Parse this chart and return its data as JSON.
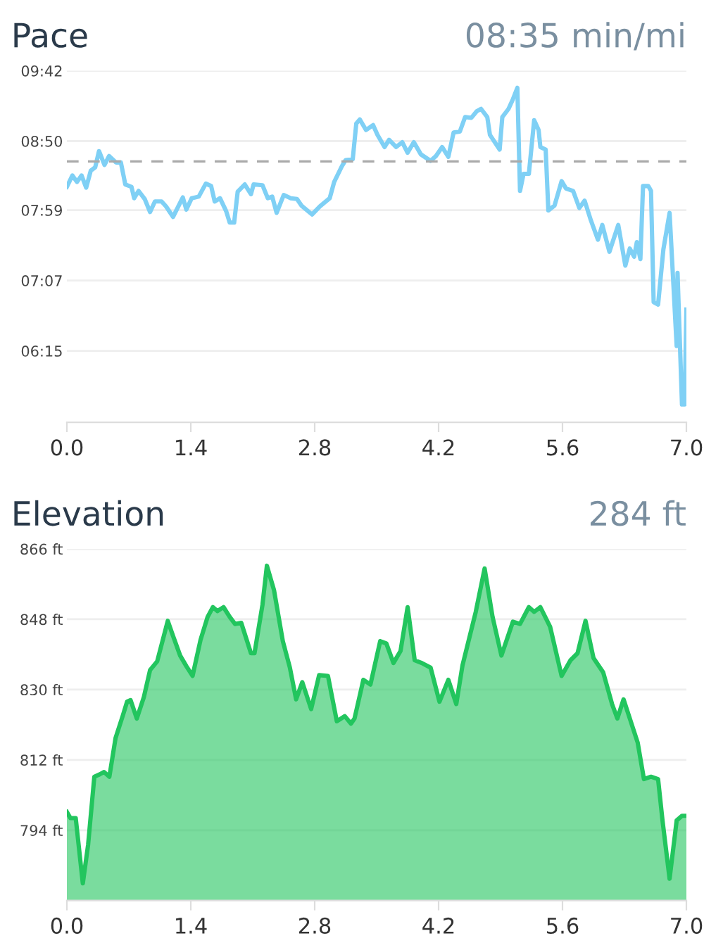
{
  "chart_data": [
    {
      "type": "line",
      "title": "Pace",
      "subtitle": "08:35 min/mi",
      "x": [
        0.0,
        0.062,
        0.114,
        0.166,
        0.218,
        0.27,
        0.32,
        0.363,
        0.425,
        0.477,
        0.555,
        0.61,
        0.66,
        0.73,
        0.76,
        0.81,
        0.88,
        0.94,
        0.995,
        1.07,
        1.12,
        1.2,
        1.31,
        1.35,
        1.41,
        1.49,
        1.57,
        1.63,
        1.67,
        1.73,
        1.8,
        1.84,
        1.89,
        1.93,
        2.01,
        2.08,
        2.11,
        2.21,
        2.27,
        2.32,
        2.37,
        2.45,
        2.53,
        2.6,
        2.65,
        2.77,
        2.86,
        2.97,
        3.02,
        3.11,
        3.15,
        3.23,
        3.27,
        3.31,
        3.38,
        3.46,
        3.51,
        3.59,
        3.64,
        3.72,
        3.79,
        3.85,
        3.92,
        4.0,
        4.11,
        4.17,
        4.24,
        4.31,
        4.37,
        4.44,
        4.5,
        4.57,
        4.63,
        4.68,
        4.75,
        4.78,
        4.89,
        4.92,
        4.99,
        5.04,
        5.09,
        5.12,
        5.16,
        5.22,
        5.28,
        5.33,
        5.35,
        5.41,
        5.44,
        5.51,
        5.59,
        5.64,
        5.72,
        5.79,
        5.85,
        5.92,
        6.0,
        6.05,
        6.13,
        6.23,
        6.31,
        6.36,
        6.41,
        6.44,
        6.48,
        6.51,
        6.57,
        6.6,
        6.63,
        6.68,
        6.74,
        6.81,
        6.89,
        6.9,
        6.95,
        6.98,
        7.0
      ],
      "series": [
        {
          "color": "#7fd0f5",
          "values": [
            8.27,
            8.41,
            8.33,
            8.41,
            8.26,
            8.47,
            8.51,
            8.71,
            8.54,
            8.65,
            8.57,
            8.57,
            8.3,
            8.27,
            8.13,
            8.22,
            8.12,
            7.96,
            8.09,
            8.09,
            8.03,
            7.9,
            8.14,
            7.99,
            8.13,
            8.15,
            8.31,
            8.28,
            8.09,
            8.13,
            7.97,
            7.83,
            7.83,
            8.21,
            8.3,
            8.18,
            8.3,
            8.29,
            8.13,
            8.15,
            7.95,
            8.17,
            8.13,
            8.12,
            8.04,
            7.93,
            8.03,
            8.13,
            8.33,
            8.53,
            8.6,
            8.61,
            9.05,
            9.1,
            8.97,
            9.03,
            8.91,
            8.76,
            8.85,
            8.76,
            8.82,
            8.69,
            8.82,
            8.67,
            8.59,
            8.65,
            8.76,
            8.64,
            8.94,
            8.95,
            9.13,
            9.12,
            9.2,
            9.23,
            9.13,
            8.91,
            8.73,
            9.13,
            9.23,
            9.35,
            9.49,
            8.22,
            8.43,
            8.43,
            9.09,
            8.97,
            8.76,
            8.73,
            7.98,
            8.04,
            8.34,
            8.25,
            8.22,
            8.01,
            8.1,
            7.86,
            7.62,
            7.8,
            7.47,
            7.8,
            7.3,
            7.51,
            7.41,
            7.59,
            7.38,
            8.28,
            8.28,
            8.22,
            6.85,
            6.82,
            7.5,
            7.95,
            6.31,
            7.21,
            5.59,
            5.59,
            6.76
          ]
        }
      ],
      "xlim": [
        0,
        7.0
      ],
      "xticks": [
        {
          "value": 0,
          "label": "0.0"
        },
        {
          "value": 1.4,
          "label": "1.4"
        },
        {
          "value": 2.8,
          "label": "2.8"
        },
        {
          "value": 4.2,
          "label": "4.2"
        },
        {
          "value": 5.6,
          "label": "5.6"
        },
        {
          "value": 7.0,
          "label": "7.0"
        }
      ],
      "ylim": [
        5.37,
        9.7
      ],
      "yticks": [
        {
          "value": 6.25,
          "label": "06:15"
        },
        {
          "value": 7.1167,
          "label": "07:07"
        },
        {
          "value": 7.9833,
          "label": "07:59"
        },
        {
          "value": 8.8333,
          "label": "08:50"
        },
        {
          "value": 9.7,
          "label": "09:42"
        }
      ],
      "ref_lines": [
        {
          "axis": "y",
          "value": 8.5833,
          "color": "#aaaaaa",
          "line_style": "dashed"
        }
      ],
      "grid": "y",
      "legend": false,
      "marker": "none",
      "line_style": "solid"
    },
    {
      "type": "area",
      "title": "Elevation",
      "subtitle": "284 ft",
      "x": [
        0,
        0.04,
        0.1,
        0.18,
        0.24,
        0.31,
        0.37,
        0.42,
        0.48,
        0.55,
        0.63,
        0.68,
        0.72,
        0.79,
        0.87,
        0.94,
        1.02,
        1.14,
        1.2,
        1.28,
        1.35,
        1.42,
        1.51,
        1.59,
        1.65,
        1.7,
        1.77,
        1.84,
        1.9,
        1.97,
        2.08,
        2.12,
        2.21,
        2.26,
        2.34,
        2.44,
        2.52,
        2.59,
        2.66,
        2.76,
        2.85,
        2.95,
        3.05,
        3.14,
        3.21,
        3.25,
        3.35,
        3.43,
        3.54,
        3.61,
        3.69,
        3.77,
        3.85,
        3.93,
        4.01,
        4.11,
        4.21,
        4.31,
        4.4,
        4.47,
        4.62,
        4.72,
        4.81,
        4.91,
        5.04,
        5.12,
        5.22,
        5.28,
        5.35,
        5.46,
        5.59,
        5.69,
        5.77,
        5.86,
        5.95,
        6.06,
        6.16,
        6.22,
        6.29,
        6.45,
        6.52,
        6.6,
        6.68,
        6.73,
        6.81,
        6.89,
        6.95,
        7.0
      ],
      "series": [
        {
          "color": "#22c55e",
          "values": [
            798.7,
            797.1,
            797.1,
            780.4,
            790.3,
            807.7,
            808.3,
            808.9,
            807.7,
            817.6,
            823.2,
            826.9,
            827.3,
            822.6,
            828.1,
            835.0,
            837.2,
            847.6,
            843.7,
            838.7,
            836.0,
            833.5,
            842.7,
            848.6,
            851.1,
            850.1,
            851.1,
            848.6,
            846.8,
            847.1,
            839.3,
            839.3,
            851.7,
            861.7,
            855.5,
            842.4,
            835.6,
            827.5,
            831.9,
            825.0,
            833.7,
            833.5,
            821.9,
            823.2,
            821.3,
            822.6,
            832.5,
            831.3,
            842.4,
            841.8,
            836.8,
            839.9,
            851.1,
            837.5,
            836.8,
            835.6,
            826.9,
            832.5,
            826.3,
            836.2,
            849.9,
            861.0,
            848.6,
            838.7,
            847.4,
            846.8,
            851.1,
            849.9,
            851.1,
            846.1,
            833.5,
            837.5,
            839.3,
            847.6,
            838.1,
            834.4,
            826.3,
            822.6,
            827.5,
            816.4,
            807.1,
            807.7,
            807.1,
            796.5,
            781.6,
            796.5,
            797.7,
            797.7
          ]
        }
      ],
      "xlim": [
        0,
        7.0
      ],
      "xticks": [
        {
          "value": 0,
          "label": "0.0"
        },
        {
          "value": 1.4,
          "label": "1.4"
        },
        {
          "value": 2.8,
          "label": "2.8"
        },
        {
          "value": 4.2,
          "label": "4.2"
        },
        {
          "value": 5.6,
          "label": "5.6"
        },
        {
          "value": 7.0,
          "label": "7.0"
        }
      ],
      "ylim": [
        776,
        866
      ],
      "yticks": [
        {
          "value": 794,
          "label": "794 ft"
        },
        {
          "value": 812,
          "label": "812 ft"
        },
        {
          "value": 830,
          "label": "830 ft"
        },
        {
          "value": 848,
          "label": "848 ft"
        },
        {
          "value": 866,
          "label": "866 ft"
        }
      ],
      "grid": "y",
      "legend": false,
      "marker": "none",
      "line_style": "solid"
    }
  ]
}
